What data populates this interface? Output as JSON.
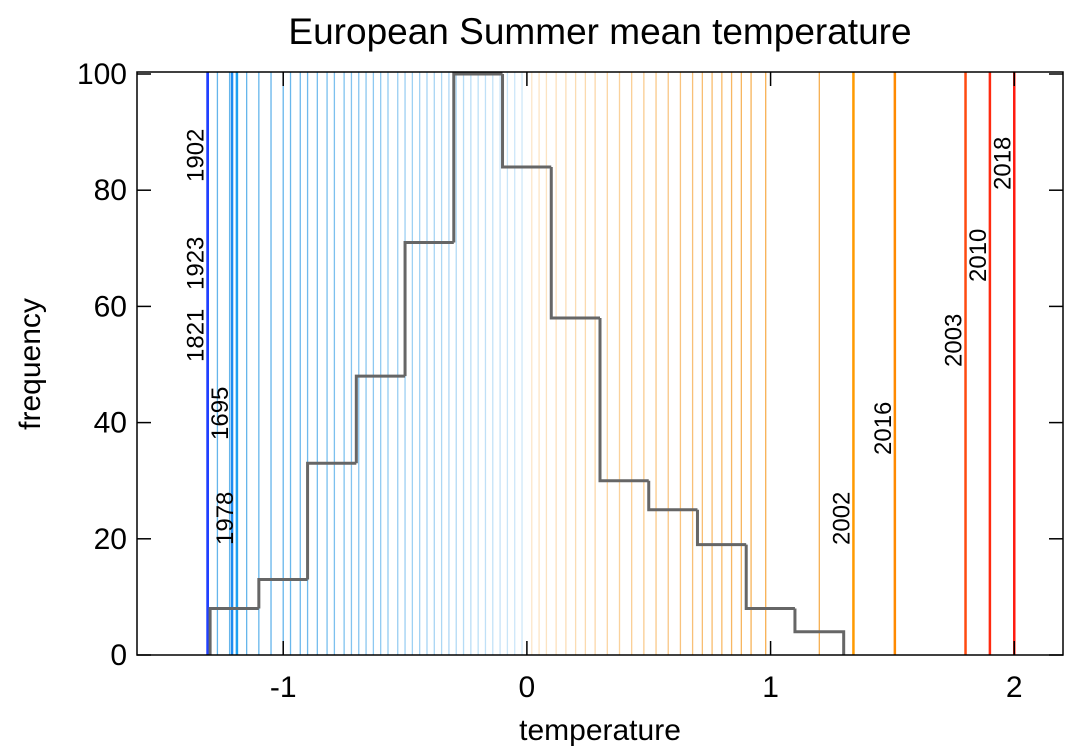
{
  "chart_data": {
    "type": "histogram",
    "title": "European Summer mean temperature",
    "x_label": "temperature",
    "y_label": "frequency",
    "bins": [
      -1.3,
      -1.1,
      -0.9,
      -0.7,
      -0.5,
      -0.3,
      -0.1,
      0.1,
      0.3,
      0.5,
      0.7,
      0.9,
      1.1,
      1.3
    ],
    "values": [
      8,
      13,
      33,
      48,
      71,
      100,
      84,
      58,
      30,
      25,
      19,
      8,
      4
    ],
    "color": "#666666",
    "xlim": [
      -1.6,
      2.2
    ],
    "ylim": [
      0,
      100
    ],
    "xticks": [
      -1,
      0,
      1,
      2
    ],
    "yticks": [
      0,
      20,
      40,
      60,
      80,
      100
    ],
    "year_lines": [
      -1.27,
      -1.22,
      -1.19,
      -1.15,
      -1.1,
      -1.05,
      -1.0,
      -0.97,
      -0.93,
      -0.9,
      -0.86,
      -0.82,
      -0.79,
      -0.75,
      -0.72,
      -0.69,
      -0.66,
      -0.63,
      -0.6,
      -0.57,
      -0.53,
      -0.5,
      -0.47,
      -0.44,
      -0.41,
      -0.38,
      -0.35,
      -0.32,
      -0.29,
      -0.26,
      -0.23,
      -0.2,
      -0.17,
      -0.14,
      -0.11,
      -0.08,
      -0.05,
      -0.02,
      0.02,
      0.05,
      0.08,
      0.12,
      0.16,
      0.2,
      0.24,
      0.28,
      0.33,
      0.38,
      0.43,
      0.48,
      0.53,
      0.58,
      0.63,
      0.68,
      0.72,
      0.76,
      0.8,
      0.84,
      0.88,
      0.92,
      0.98,
      1.2
    ],
    "cold_color": "#4aa8e8",
    "warm_color": "#f5a030",
    "annotations": [
      {
        "label": "1902",
        "value": -1.31,
        "color": "#1f40ff"
      },
      {
        "label": "1923",
        "value": -1.31,
        "color": "#1f40ff"
      },
      {
        "label": "1821",
        "value": -1.31,
        "color": "#1f40ff"
      },
      {
        "label": "1695",
        "value": -1.21,
        "color": "#1e8cf0"
      },
      {
        "label": "1978",
        "value": -1.19,
        "color": "#1ea0f0"
      },
      {
        "label": "2002",
        "value": 1.34,
        "color": "#ff9a00"
      },
      {
        "label": "2016",
        "value": 1.51,
        "color": "#ff8a00"
      },
      {
        "label": "2003",
        "value": 1.8,
        "color": "#ff4a10"
      },
      {
        "label": "2010",
        "value": 1.9,
        "color": "#ff2a10"
      },
      {
        "label": "2018",
        "value": 2.0,
        "color": "#ff1a10"
      }
    ]
  }
}
